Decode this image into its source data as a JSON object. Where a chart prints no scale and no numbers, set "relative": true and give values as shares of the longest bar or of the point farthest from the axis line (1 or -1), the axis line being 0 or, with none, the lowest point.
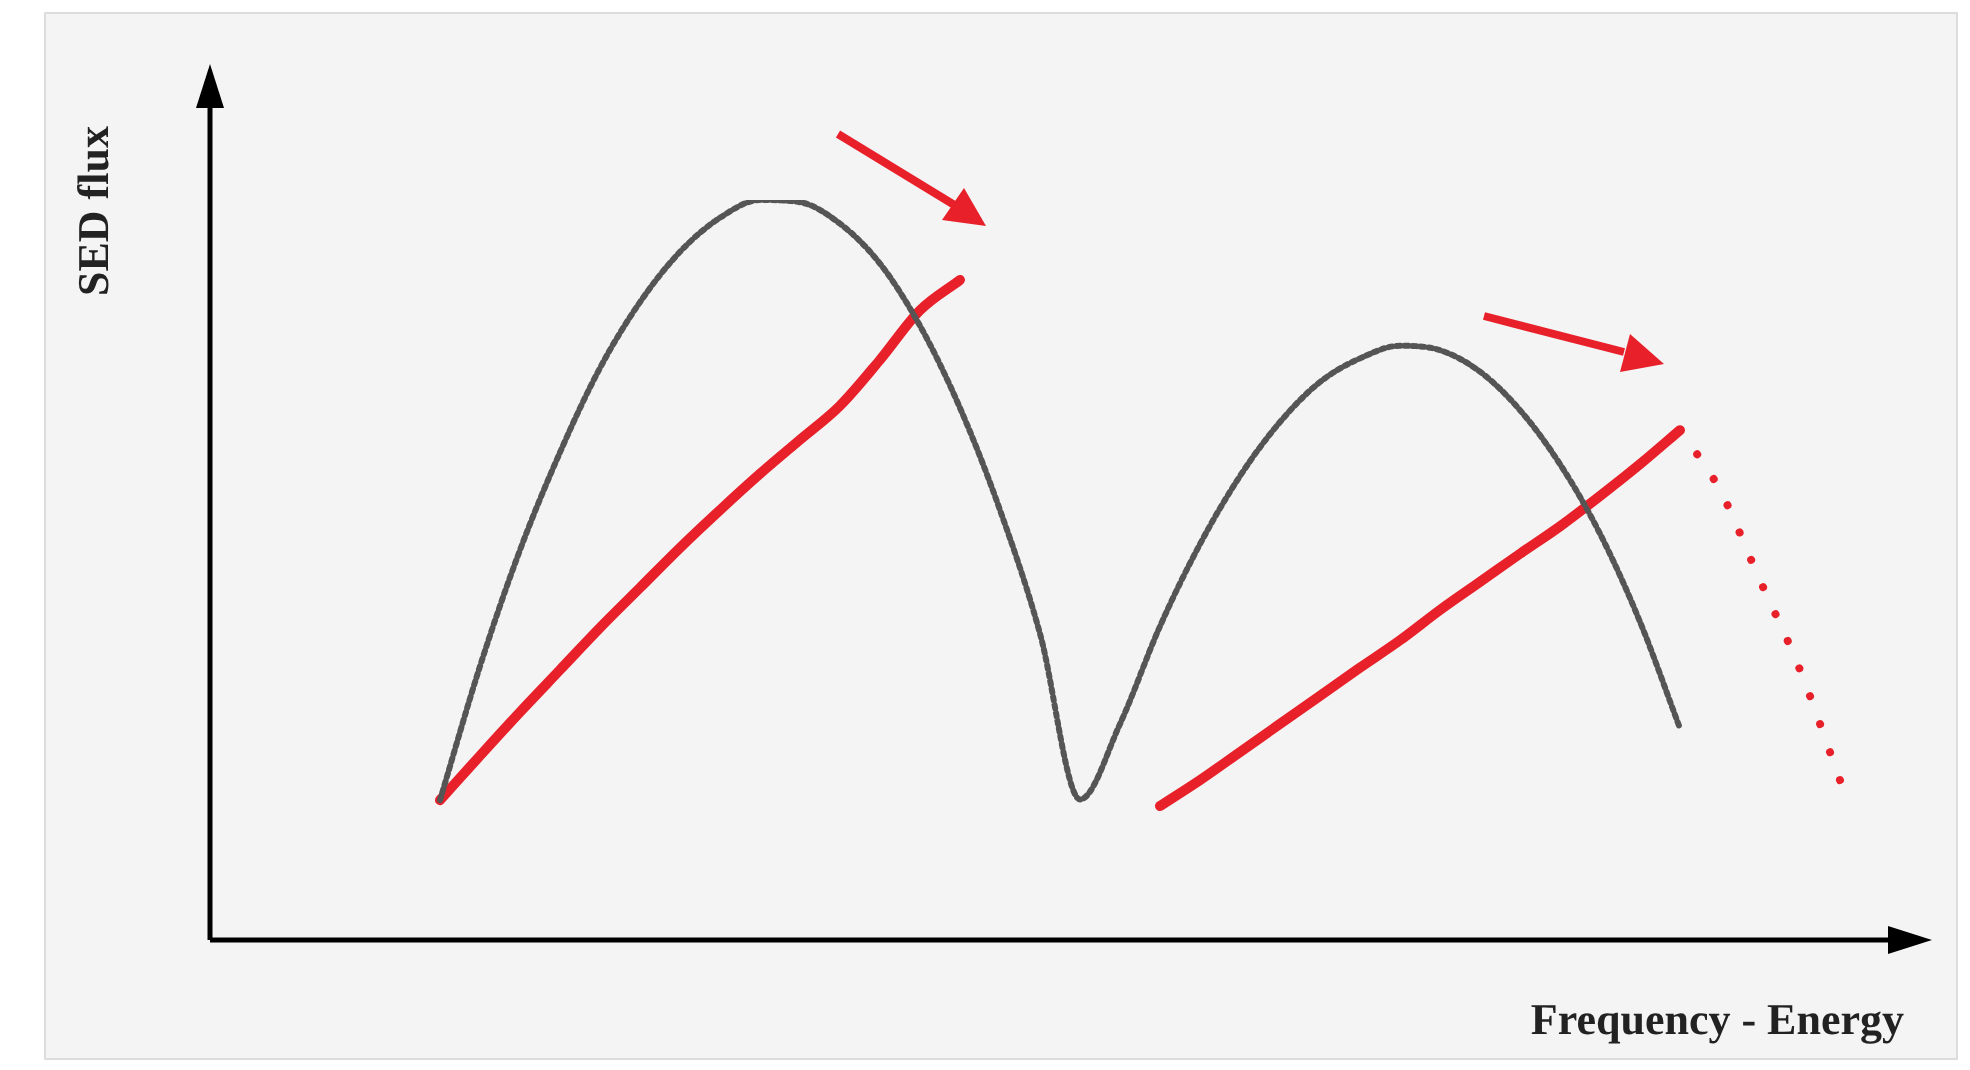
{
  "chart_data": {
    "type": "line",
    "relative": true,
    "xlabel": "Frequency - Energy",
    "ylabel": "SED flux",
    "legend": false,
    "grid": false,
    "tick_labels": false,
    "marker": "none",
    "categories": [
      null,
      null,
      null,
      null,
      null,
      null,
      null,
      null,
      null,
      null,
      null,
      null,
      null,
      null,
      null,
      null,
      null,
      null,
      null,
      null,
      null,
      null,
      null,
      null,
      null,
      null,
      null,
      null,
      null,
      null,
      null,
      null,
      null,
      null,
      null,
      null,
      null,
      null,
      null,
      null,
      null,
      null,
      null,
      null
    ],
    "series": [
      {
        "color": "#555555",
        "line_style": "dotted",
        "values": [
          null,
          null,
          null,
          null,
          null,
          null,
          0.189,
          0.37,
          0.527,
          0.659,
          0.773,
          0.862,
          0.93,
          0.976,
          1,
          0.997,
          0.968,
          0.914,
          0.83,
          0.719,
          0.581,
          0.414,
          0.19,
          0.292,
          0.424,
          0.535,
          0.627,
          0.7,
          0.754,
          0.786,
          0.803,
          0.797,
          0.768,
          0.716,
          0.643,
          0.549,
          0.43,
          0.286,
          null,
          null,
          null,
          null,
          null,
          null
        ]
      },
      {
        "color": "#e8202a",
        "line_style": "solid",
        "values": [
          null,
          null,
          null,
          null,
          null,
          null,
          0.189,
          0.249,
          0.308,
          0.365,
          0.422,
          0.476,
          0.53,
          0.581,
          0.63,
          0.676,
          0.722,
          0.784,
          0.851,
          0.892,
          null,
          null,
          null,
          null,
          null,
          null,
          null,
          null,
          null,
          null,
          null,
          null,
          null,
          null,
          null,
          null,
          null,
          null,
          null,
          null,
          null,
          null,
          null,
          null
        ]
      },
      {
        "color": "#e8202a",
        "line_style": "solid",
        "values": [
          null,
          null,
          null,
          null,
          null,
          null,
          null,
          null,
          null,
          null,
          null,
          null,
          null,
          null,
          null,
          null,
          null,
          null,
          null,
          null,
          null,
          null,
          null,
          null,
          0.181,
          0.216,
          0.254,
          0.292,
          0.33,
          0.368,
          0.405,
          0.446,
          0.484,
          0.522,
          0.559,
          0.6,
          0.643,
          0.689,
          null,
          null,
          null,
          null,
          null,
          null
        ]
      },
      {
        "color": "#e8202a",
        "line_style": "dashed",
        "values": [
          null,
          null,
          null,
          null,
          null,
          null,
          null,
          null,
          null,
          null,
          null,
          null,
          null,
          null,
          null,
          null,
          null,
          null,
          null,
          null,
          null,
          null,
          null,
          null,
          null,
          null,
          null,
          null,
          null,
          null,
          null,
          null,
          null,
          null,
          null,
          null,
          null,
          0.689,
          0.608,
          0.486,
          0.365,
          0.216,
          null,
          null
        ]
      }
    ]
  }
}
